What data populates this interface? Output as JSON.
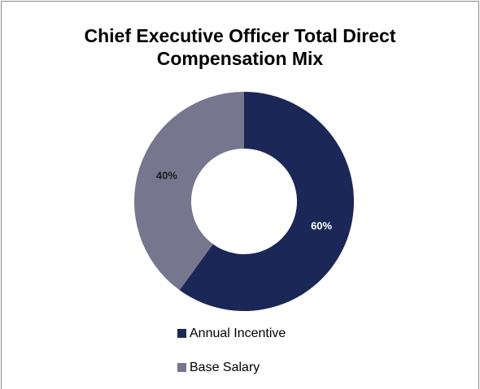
{
  "chart_data": {
    "type": "donut",
    "title": "Chief Executive Officer Total Direct Compensation Mix",
    "categories": [
      "Annual Incentive",
      "Base Salary"
    ],
    "values": [
      60,
      40
    ],
    "value_labels": [
      "60%",
      "40%"
    ],
    "colors": [
      "#1b2757",
      "#77768f"
    ],
    "legend": "bottom"
  }
}
